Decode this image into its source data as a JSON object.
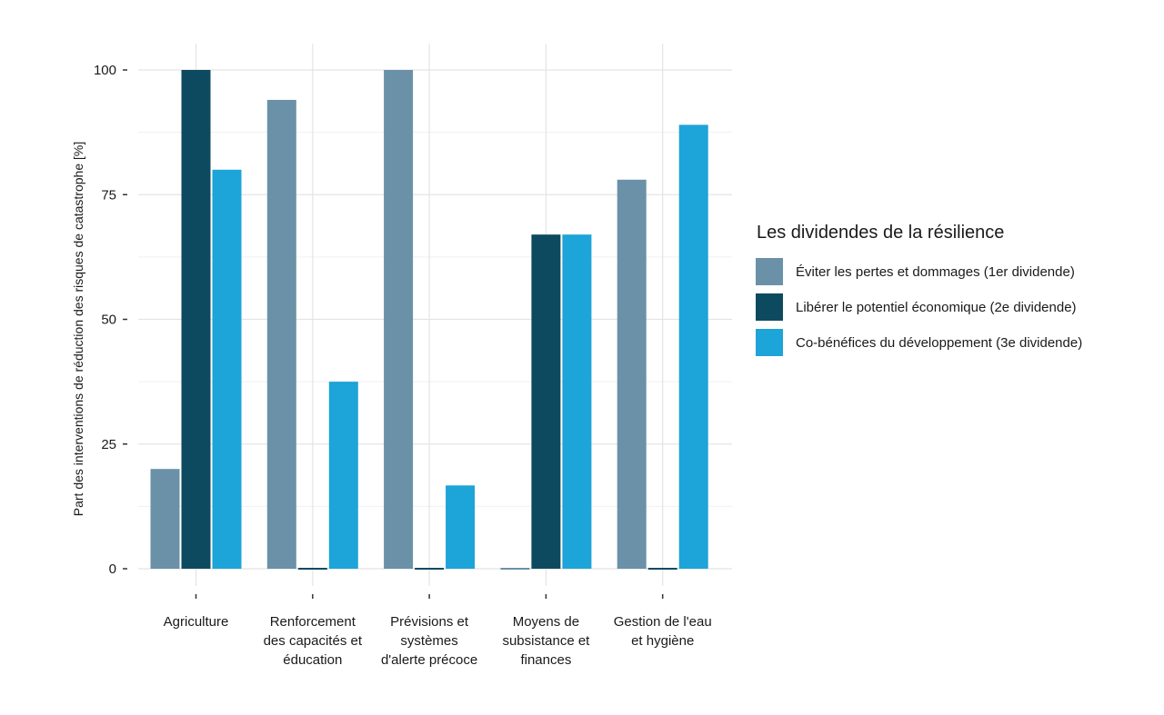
{
  "chart_data": {
    "type": "bar",
    "ylabel": "Part des interventions de réduction des risques de catastrophe [%]",
    "xlabel": "",
    "ylim": [
      0,
      100
    ],
    "yticks": [
      0,
      25,
      50,
      75,
      100
    ],
    "grid": true,
    "legend_position": "right",
    "categories": [
      [
        "Agriculture"
      ],
      [
        "Renforcement",
        "des capacités et",
        "éducation"
      ],
      [
        "Prévisions et",
        "systèmes",
        "d'alerte précoce"
      ],
      [
        "Moyens de",
        "subsistance et",
        "finances"
      ],
      [
        "Gestion de l'eau",
        "et hygiène"
      ]
    ],
    "legend_title": "Les dividendes de la résilience",
    "series": [
      {
        "name": "Éviter les pertes et dommages (1er dividende)",
        "color": "#6a91a8",
        "values": [
          20,
          94,
          100,
          0,
          78
        ]
      },
      {
        "name": "Libérer le potentiel économique (2e dividende)",
        "color": "#0d4a60",
        "values": [
          100,
          0,
          0,
          67,
          0
        ]
      },
      {
        "name": "Co-bénéfices du développement (3e dividende)",
        "color": "#1da4d8",
        "values": [
          80,
          37.5,
          16.7,
          67,
          89
        ]
      }
    ]
  }
}
